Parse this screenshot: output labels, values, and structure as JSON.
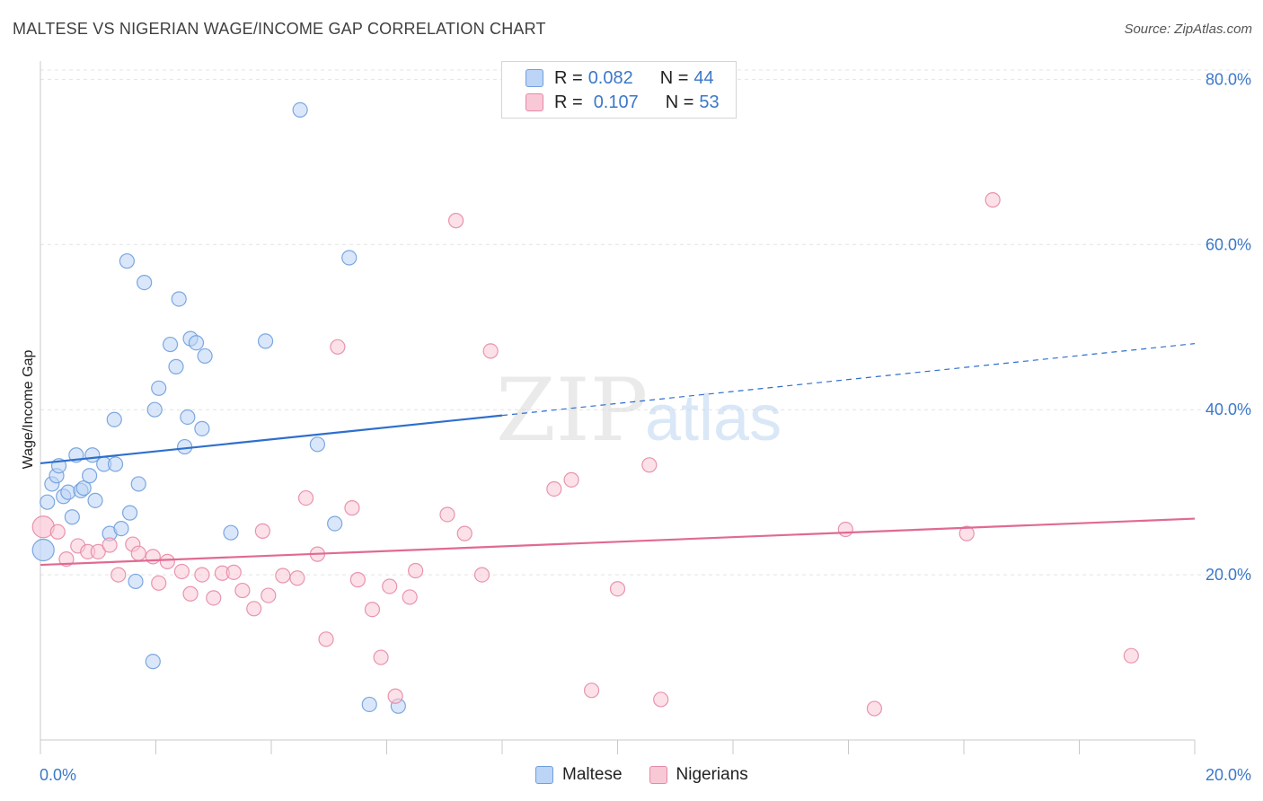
{
  "title": "MALTESE VS NIGERIAN WAGE/INCOME GAP CORRELATION CHART",
  "source": "Source: ZipAtlas.com",
  "watermark": {
    "zip": "ZIP",
    "atlas": "atlas"
  },
  "legend": {
    "rows": [
      {
        "r_label": "R =",
        "r_value": "0.082",
        "n_label": "N =",
        "n_value": "44"
      },
      {
        "r_label": "R =",
        "r_value": "0.107",
        "n_label": "N =",
        "n_value": "53"
      }
    ]
  },
  "colors": {
    "maltese_fill": "#bcd4f6",
    "maltese_stroke": "#6f9fdc",
    "maltese_line": "#2f6fcc",
    "nigerian_fill": "#f9c8d6",
    "nigerian_stroke": "#e58aa6",
    "nigerian_line": "#e06a92",
    "axis_text": "#3b78c9",
    "grid": "#e4e4e4"
  },
  "chart_data": {
    "type": "scatter",
    "title": "MALTESE VS NIGERIAN WAGE/INCOME GAP CORRELATION CHART",
    "xlabel": "",
    "ylabel": "Wage/Income Gap",
    "xlim": [
      0,
      20
    ],
    "ylim": [
      0,
      82
    ],
    "x_tick_labels": [
      "0.0%",
      "20.0%"
    ],
    "y_ticks": [
      20,
      40,
      60,
      80
    ],
    "y_tick_labels": [
      "20.0%",
      "40.0%",
      "60.0%",
      "80.0%"
    ],
    "grid": true,
    "legend_position": "top-center",
    "series": [
      {
        "name": "Maltese",
        "r": 0.082,
        "n": 44,
        "trend": {
          "x0": 0,
          "y0": 33.5,
          "x1": 8,
          "y1": 39.3,
          "dash_to_x": 20,
          "dash_to_y": 48.0
        },
        "points": [
          [
            0.05,
            23.0
          ],
          [
            0.12,
            28.8
          ],
          [
            0.2,
            31.0
          ],
          [
            0.28,
            32.0
          ],
          [
            0.32,
            33.2
          ],
          [
            0.4,
            29.5
          ],
          [
            0.48,
            30.0
          ],
          [
            0.55,
            27.0
          ],
          [
            0.62,
            34.5
          ],
          [
            0.7,
            30.2
          ],
          [
            0.75,
            30.5
          ],
          [
            0.85,
            32.0
          ],
          [
            0.9,
            34.5
          ],
          [
            0.95,
            29.0
          ],
          [
            1.1,
            33.4
          ],
          [
            1.2,
            25.0
          ],
          [
            1.28,
            38.8
          ],
          [
            1.3,
            33.4
          ],
          [
            1.4,
            25.6
          ],
          [
            1.5,
            58.0
          ],
          [
            1.55,
            27.5
          ],
          [
            1.65,
            19.2
          ],
          [
            1.7,
            31.0
          ],
          [
            1.8,
            55.4
          ],
          [
            1.95,
            9.5
          ],
          [
            1.98,
            40.0
          ],
          [
            2.05,
            42.6
          ],
          [
            2.25,
            47.9
          ],
          [
            2.35,
            45.2
          ],
          [
            2.4,
            53.4
          ],
          [
            2.5,
            35.5
          ],
          [
            2.55,
            39.1
          ],
          [
            2.6,
            48.6
          ],
          [
            2.7,
            48.1
          ],
          [
            2.8,
            37.7
          ],
          [
            2.85,
            46.5
          ],
          [
            3.3,
            25.1
          ],
          [
            3.9,
            48.3
          ],
          [
            4.5,
            76.3
          ],
          [
            4.8,
            35.8
          ],
          [
            5.1,
            26.2
          ],
          [
            5.35,
            58.4
          ],
          [
            5.7,
            4.3
          ],
          [
            6.2,
            4.1
          ]
        ]
      },
      {
        "name": "Nigerians",
        "r": 0.107,
        "n": 53,
        "trend": {
          "x0": 0,
          "y0": 21.2,
          "x1": 20,
          "y1": 26.8
        },
        "points": [
          [
            0.05,
            25.8
          ],
          [
            0.3,
            25.2
          ],
          [
            0.45,
            21.9
          ],
          [
            0.65,
            23.5
          ],
          [
            0.82,
            22.8
          ],
          [
            1.0,
            22.8
          ],
          [
            1.2,
            23.6
          ],
          [
            1.35,
            20.0
          ],
          [
            1.6,
            23.7
          ],
          [
            1.7,
            22.6
          ],
          [
            1.95,
            22.2
          ],
          [
            2.05,
            19.0
          ],
          [
            2.2,
            21.6
          ],
          [
            2.45,
            20.4
          ],
          [
            2.6,
            17.7
          ],
          [
            2.8,
            20.0
          ],
          [
            3.0,
            17.2
          ],
          [
            3.15,
            20.2
          ],
          [
            3.35,
            20.3
          ],
          [
            3.5,
            18.1
          ],
          [
            3.7,
            15.9
          ],
          [
            3.85,
            25.3
          ],
          [
            3.95,
            17.5
          ],
          [
            4.2,
            19.9
          ],
          [
            4.45,
            19.6
          ],
          [
            4.6,
            29.3
          ],
          [
            4.8,
            22.5
          ],
          [
            4.95,
            12.2
          ],
          [
            5.15,
            47.6
          ],
          [
            5.4,
            28.1
          ],
          [
            5.5,
            19.4
          ],
          [
            5.75,
            15.8
          ],
          [
            5.9,
            10.0
          ],
          [
            6.05,
            18.6
          ],
          [
            6.15,
            5.3
          ],
          [
            6.4,
            17.3
          ],
          [
            6.5,
            20.5
          ],
          [
            7.05,
            27.3
          ],
          [
            7.2,
            62.9
          ],
          [
            7.35,
            25.0
          ],
          [
            7.65,
            20.0
          ],
          [
            7.8,
            47.1
          ],
          [
            8.9,
            30.4
          ],
          [
            9.2,
            31.5
          ],
          [
            9.55,
            6.0
          ],
          [
            10.0,
            18.3
          ],
          [
            10.55,
            33.3
          ],
          [
            10.75,
            4.9
          ],
          [
            13.95,
            25.5
          ],
          [
            14.45,
            3.8
          ],
          [
            16.05,
            25.0
          ],
          [
            16.5,
            65.4
          ],
          [
            18.9,
            10.2
          ]
        ]
      }
    ]
  },
  "bottom_legend": {
    "items": [
      {
        "label": "Maltese"
      },
      {
        "label": "Nigerians"
      }
    ]
  }
}
